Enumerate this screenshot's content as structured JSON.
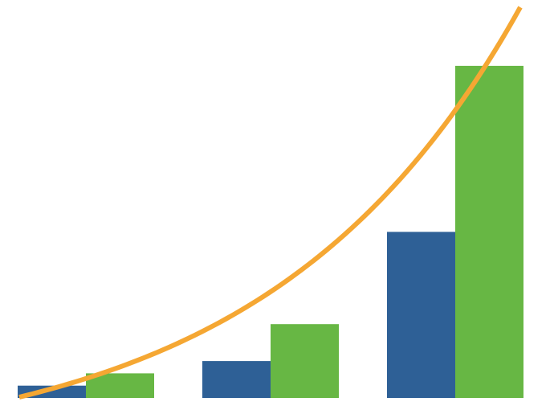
{
  "chart_data": {
    "type": "bar",
    "categories": [
      "",
      "",
      ""
    ],
    "series": [
      {
        "values": [
          4,
          12,
          54
        ]
      },
      {
        "values": [
          8,
          24,
          108
        ]
      }
    ],
    "trend_line": {
      "type": "curve",
      "shape": "exponential"
    },
    "ylim": [
      0,
      120
    ],
    "grid": false,
    "legend": "none",
    "title": "",
    "xlabel": "",
    "ylabel": "",
    "colors": {
      "series_0": "#2e6096",
      "series_1": "#67b744",
      "trend": "#f5a733",
      "background": "#ffffff"
    }
  }
}
